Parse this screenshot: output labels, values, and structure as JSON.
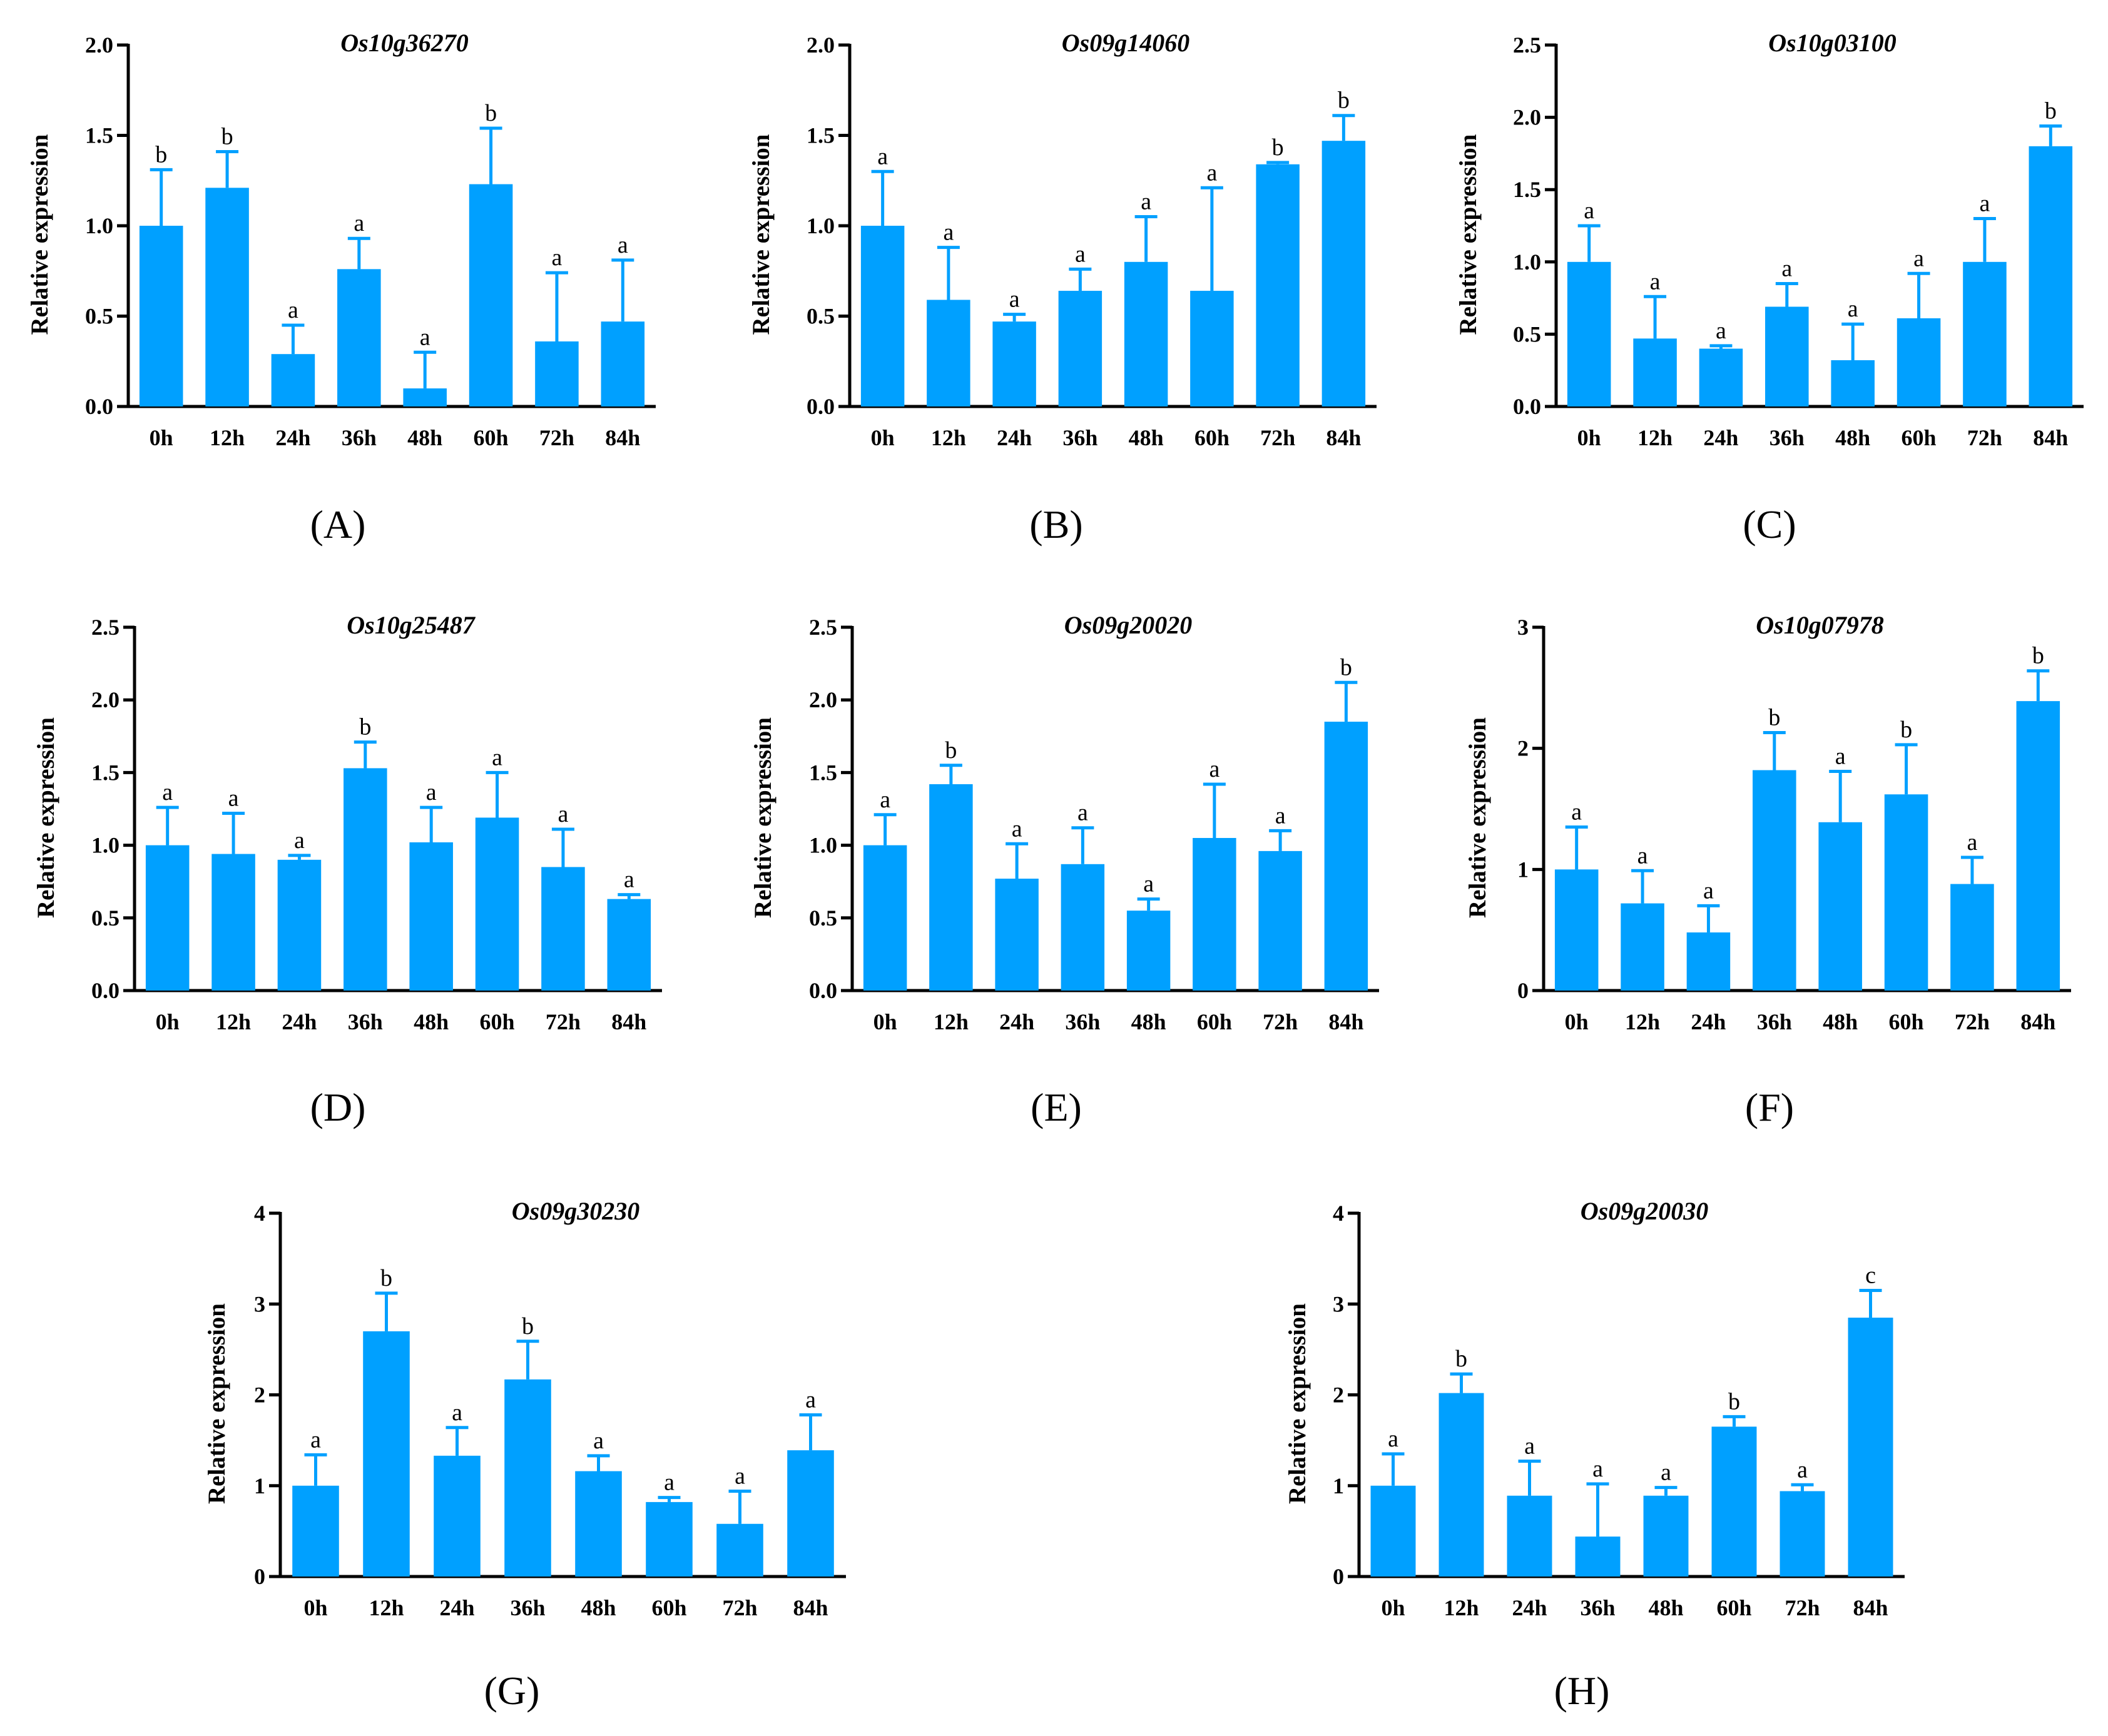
{
  "colors": {
    "bar": "#00a0ff",
    "axis": "#000000"
  },
  "chart_data": [
    {
      "panel": "(A)",
      "type": "bar",
      "title": "Os10g36270",
      "ylabel": "Relative expression",
      "xlabel": "",
      "categories": [
        "0h",
        "12h",
        "24h",
        "36h",
        "48h",
        "60h",
        "72h",
        "84h"
      ],
      "values": [
        1.0,
        1.21,
        0.29,
        0.76,
        0.1,
        1.23,
        0.36,
        0.47
      ],
      "errors": [
        0.31,
        0.2,
        0.16,
        0.17,
        0.2,
        0.31,
        0.38,
        0.34
      ],
      "significance": [
        "b",
        "b",
        "a",
        "a",
        "a",
        "b",
        "a",
        "a"
      ],
      "ylim": [
        0,
        2.0
      ],
      "yticks": [
        0,
        0.5,
        1.0,
        1.5,
        2.0
      ],
      "ytick_labels": [
        "0.0",
        "0.5",
        "1.0",
        "1.5",
        "2.0"
      ]
    },
    {
      "panel": "(B)",
      "type": "bar",
      "title": "Os09g14060",
      "ylabel": "Relative expression",
      "xlabel": "",
      "categories": [
        "0h",
        "12h",
        "24h",
        "36h",
        "48h",
        "60h",
        "72h",
        "84h"
      ],
      "values": [
        1.0,
        0.59,
        0.47,
        0.64,
        0.8,
        0.64,
        1.34,
        1.47
      ],
      "errors": [
        0.3,
        0.29,
        0.04,
        0.12,
        0.25,
        0.57,
        0.01,
        0.14
      ],
      "significance": [
        "a",
        "a",
        "a",
        "a",
        "a",
        "a",
        "b",
        "b"
      ],
      "ylim": [
        0,
        2.0
      ],
      "yticks": [
        0,
        0.5,
        1.0,
        1.5,
        2.0
      ],
      "ytick_labels": [
        "0.0",
        "0.5",
        "1.0",
        "1.5",
        "2.0"
      ]
    },
    {
      "panel": "(C)",
      "type": "bar",
      "title": "Os10g03100",
      "ylabel": "Relative expression",
      "xlabel": "",
      "categories": [
        "0h",
        "12h",
        "24h",
        "36h",
        "48h",
        "60h",
        "72h",
        "84h"
      ],
      "values": [
        1.0,
        0.47,
        0.4,
        0.69,
        0.32,
        0.61,
        1.0,
        1.8
      ],
      "errors": [
        0.25,
        0.29,
        0.02,
        0.16,
        0.25,
        0.31,
        0.3,
        0.14
      ],
      "significance": [
        "a",
        "a",
        "a",
        "a",
        "a",
        "a",
        "a",
        "b"
      ],
      "ylim": [
        0,
        2.5
      ],
      "yticks": [
        0,
        0.5,
        1.0,
        1.5,
        2.0,
        2.5
      ],
      "ytick_labels": [
        "0.0",
        "0.5",
        "1.0",
        "1.5",
        "2.0",
        "2.5"
      ]
    },
    {
      "panel": "(D)",
      "type": "bar",
      "title": "Os10g25487",
      "ylabel": "Relative expression",
      "xlabel": "",
      "categories": [
        "0h",
        "12h",
        "24h",
        "36h",
        "48h",
        "60h",
        "72h",
        "84h"
      ],
      "values": [
        1.0,
        0.94,
        0.9,
        1.53,
        1.02,
        1.19,
        0.85,
        0.63
      ],
      "errors": [
        0.26,
        0.28,
        0.03,
        0.18,
        0.24,
        0.31,
        0.26,
        0.03
      ],
      "significance": [
        "a",
        "a",
        "a",
        "b",
        "a",
        "a",
        "a",
        "a"
      ],
      "ylim": [
        0,
        2.5
      ],
      "yticks": [
        0,
        0.5,
        1.0,
        1.5,
        2.0,
        2.5
      ],
      "ytick_labels": [
        "0.0",
        "0.5",
        "1.0",
        "1.5",
        "2.0",
        "2.5"
      ]
    },
    {
      "panel": "(E)",
      "type": "bar",
      "title": "Os09g20020",
      "ylabel": "Relative expression",
      "xlabel": "",
      "categories": [
        "0h",
        "12h",
        "24h",
        "36h",
        "48h",
        "60h",
        "72h",
        "84h"
      ],
      "values": [
        1.0,
        1.42,
        0.77,
        0.87,
        0.55,
        1.05,
        0.96,
        1.85
      ],
      "errors": [
        0.21,
        0.13,
        0.24,
        0.25,
        0.08,
        0.37,
        0.14,
        0.27
      ],
      "significance": [
        "a",
        "b",
        "a",
        "a",
        "a",
        "a",
        "a",
        "b"
      ],
      "ylim": [
        0,
        2.5
      ],
      "yticks": [
        0,
        0.5,
        1.0,
        1.5,
        2.0,
        2.5
      ],
      "ytick_labels": [
        "0.0",
        "0.5",
        "1.0",
        "1.5",
        "2.0",
        "2.5"
      ]
    },
    {
      "panel": "(F)",
      "type": "bar",
      "title": "Os10g07978",
      "ylabel": "Relative expression",
      "xlabel": "",
      "categories": [
        "0h",
        "12h",
        "24h",
        "36h",
        "48h",
        "60h",
        "72h",
        "84h"
      ],
      "values": [
        1.0,
        0.72,
        0.48,
        1.82,
        1.39,
        1.62,
        0.88,
        2.39
      ],
      "errors": [
        0.35,
        0.27,
        0.22,
        0.31,
        0.42,
        0.41,
        0.22,
        0.25
      ],
      "significance": [
        "a",
        "a",
        "a",
        "b",
        "a",
        "b",
        "a",
        "b"
      ],
      "ylim": [
        0,
        3
      ],
      "yticks": [
        0,
        1,
        2,
        3
      ],
      "ytick_labels": [
        "0",
        "1",
        "2",
        "3"
      ]
    },
    {
      "panel": "(G)",
      "type": "bar",
      "title": "Os09g30230",
      "ylabel": "Relative expression",
      "xlabel": "",
      "categories": [
        "0h",
        "12h",
        "24h",
        "36h",
        "48h",
        "60h",
        "72h",
        "84h"
      ],
      "values": [
        1.0,
        2.7,
        1.33,
        2.17,
        1.16,
        0.82,
        0.58,
        1.39
      ],
      "errors": [
        0.34,
        0.42,
        0.31,
        0.42,
        0.17,
        0.05,
        0.36,
        0.39
      ],
      "significance": [
        "a",
        "b",
        "a",
        "b",
        "a",
        "a",
        "a",
        "a"
      ],
      "ylim": [
        0,
        4
      ],
      "yticks": [
        0,
        1,
        2,
        3,
        4
      ],
      "ytick_labels": [
        "0",
        "1",
        "2",
        "3",
        "4"
      ]
    },
    {
      "panel": "(H)",
      "type": "bar",
      "title": "Os09g20030",
      "ylabel": "Relative expression",
      "xlabel": "",
      "categories": [
        "0h",
        "12h",
        "24h",
        "36h",
        "48h",
        "60h",
        "72h",
        "84h"
      ],
      "values": [
        1.0,
        2.02,
        0.89,
        0.44,
        0.89,
        1.65,
        0.94,
        2.85
      ],
      "errors": [
        0.35,
        0.21,
        0.38,
        0.58,
        0.09,
        0.11,
        0.07,
        0.3
      ],
      "significance": [
        "a",
        "b",
        "a",
        "a",
        "a",
        "b",
        "a",
        "c"
      ],
      "ylim": [
        0,
        4
      ],
      "yticks": [
        0,
        1,
        2,
        3,
        4
      ],
      "ytick_labels": [
        "0",
        "1",
        "2",
        "3",
        "4"
      ]
    }
  ]
}
